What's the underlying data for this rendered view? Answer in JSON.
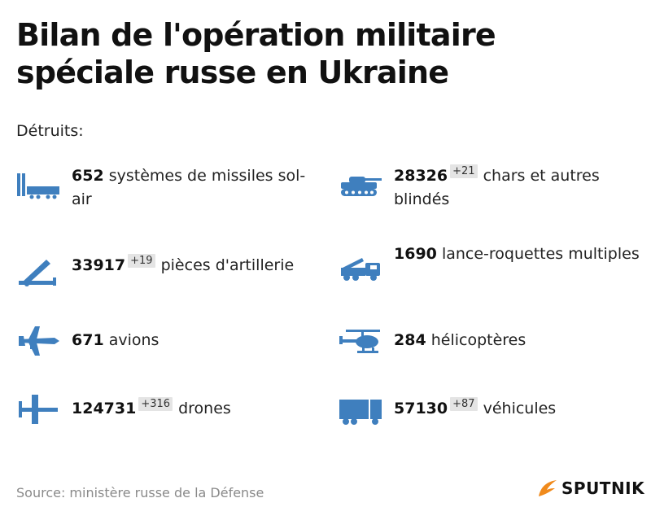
{
  "title": "Bilan de l'opération militaire spéciale russe en Ukraine",
  "destroyed_label": "Détruits:",
  "items": [
    {
      "icon": "missile-launcher-icon",
      "value": "652",
      "delta": "",
      "label": "systèmes de missiles sol-air"
    },
    {
      "icon": "tank-icon",
      "value": "28326",
      "delta": "+21",
      "label": "chars et autres blindés"
    },
    {
      "icon": "artillery-icon",
      "value": "33917",
      "delta": "+19",
      "label": "pièces d'artillerie"
    },
    {
      "icon": "rocket-launcher-truck-icon",
      "value": "1690",
      "delta": "",
      "label": "lance-roquettes multiples"
    },
    {
      "icon": "airplane-icon",
      "value": "671",
      "delta": "",
      "label": "avions"
    },
    {
      "icon": "helicopter-icon",
      "value": "284",
      "delta": "",
      "label": "hélicoptères"
    },
    {
      "icon": "drone-icon",
      "value": "124731",
      "delta": "+316",
      "label": "drones"
    },
    {
      "icon": "truck-icon",
      "value": "57130",
      "delta": "+87",
      "label": "véhicules"
    }
  ],
  "source": "Source: ministère russe de la Défense",
  "brand": "SPUTNIK",
  "colors": {
    "icon": "#3f7fbe",
    "brand_orange": "#f08a1c",
    "delta_bg": "#e4e4e4"
  }
}
